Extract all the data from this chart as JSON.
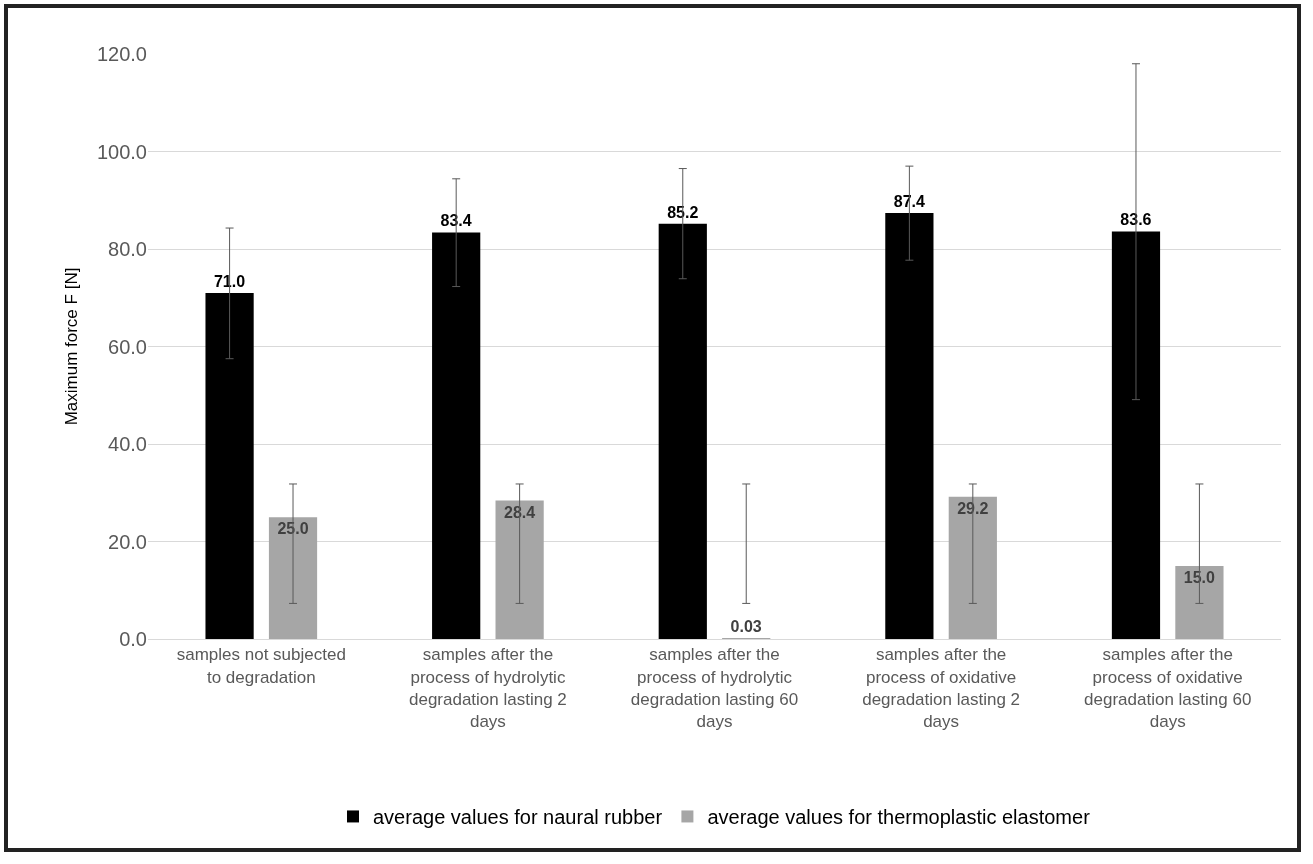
{
  "chart_data": {
    "type": "bar",
    "ylabel": "Maximum force F [N]",
    "categories": [
      "samples not subjected to degradation",
      "samples after the process of hydrolytic degradation lasting 2 days",
      "samples after the process of hydrolytic degradation lasting 60 days",
      "samples after the process of oxidative degradation lasting 2 days",
      "samples after the process of oxidative degradation lasting 60 days"
    ],
    "series": [
      {
        "name": "average values for naural rubber",
        "color": "#000000",
        "values": [
          71.0,
          83.4,
          85.2,
          87.4,
          83.6
        ],
        "value_labels": [
          "71.0",
          "83.4",
          "85.2",
          "87.4",
          "83.6"
        ],
        "errors": [
          [
            57.5,
            84.3
          ],
          [
            72.3,
            94.4
          ],
          [
            73.9,
            96.5
          ],
          [
            77.7,
            97.0
          ],
          [
            49.1,
            118.0
          ]
        ]
      },
      {
        "name": "average values for thermoplastic elastomer",
        "color": "#a6a6a6",
        "values": [
          25.0,
          28.4,
          0.03,
          29.2,
          15.0
        ],
        "value_labels": [
          "25.0",
          "28.4",
          "0.03",
          "29.2",
          "15.0"
        ],
        "errors": [
          [
            7.3,
            31.8
          ],
          [
            7.3,
            31.8
          ],
          [
            7.3,
            31.8
          ],
          [
            7.3,
            31.8
          ],
          [
            7.3,
            31.8
          ]
        ]
      }
    ],
    "ylim": [
      0,
      120
    ],
    "yticks": [
      {
        "value": 0,
        "label": "0.0"
      },
      {
        "value": 20,
        "label": "20.0"
      },
      {
        "value": 40,
        "label": "40.0"
      },
      {
        "value": 60,
        "label": "60.0"
      },
      {
        "value": 80,
        "label": "80.0"
      },
      {
        "value": 100,
        "label": "100.0"
      },
      {
        "value": 120,
        "label": "120.0"
      }
    ],
    "grid": "y",
    "legend": "bottom"
  }
}
